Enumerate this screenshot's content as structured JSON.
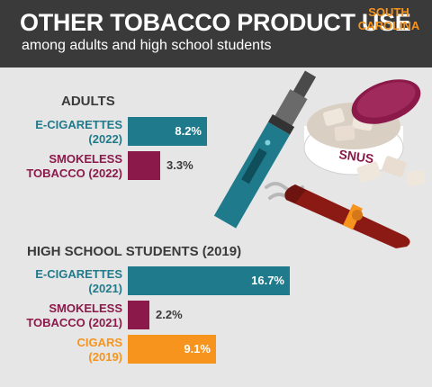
{
  "header": {
    "title": "OTHER TOBACCO PRODUCT USE",
    "subtitle": "among adults and high school students",
    "state_line1": "SOUTH",
    "state_line2": "CAROLINA"
  },
  "illustration": {
    "snus_label": "SNUS"
  },
  "colors": {
    "e_cigarettes": "#1f7a8c",
    "smokeless": "#8b1a4a",
    "cigars": "#f7941d",
    "header_bg": "#3a3a3a",
    "background": "#e6e6e6"
  },
  "chart_data": [
    {
      "type": "bar",
      "orientation": "horizontal",
      "title": "ADULTS",
      "xlim": [
        0,
        20
      ],
      "bars": [
        {
          "label_line1": "E-CIGARETTES",
          "label_line2": "(2022)",
          "value": 8.2,
          "display": "8.2%",
          "color": "#1f7a8c"
        },
        {
          "label_line1": "SMOKELESS",
          "label_line2": "TOBACCO (2022)",
          "value": 3.3,
          "display": "3.3%",
          "color": "#8b1a4a"
        }
      ]
    },
    {
      "type": "bar",
      "orientation": "horizontal",
      "title": "HIGH SCHOOL STUDENTS (2019)",
      "xlim": [
        0,
        20
      ],
      "bars": [
        {
          "label_line1": "E-CIGARETTES",
          "label_line2": "(2021)",
          "value": 16.7,
          "display": "16.7%",
          "color": "#1f7a8c"
        },
        {
          "label_line1": "SMOKELESS",
          "label_line2": "TOBACCO (2021)",
          "value": 2.2,
          "display": "2.2%",
          "color": "#8b1a4a"
        },
        {
          "label_line1": "CIGARS",
          "label_line2": "(2019)",
          "value": 9.1,
          "display": "9.1%",
          "color": "#f7941d"
        }
      ]
    }
  ]
}
